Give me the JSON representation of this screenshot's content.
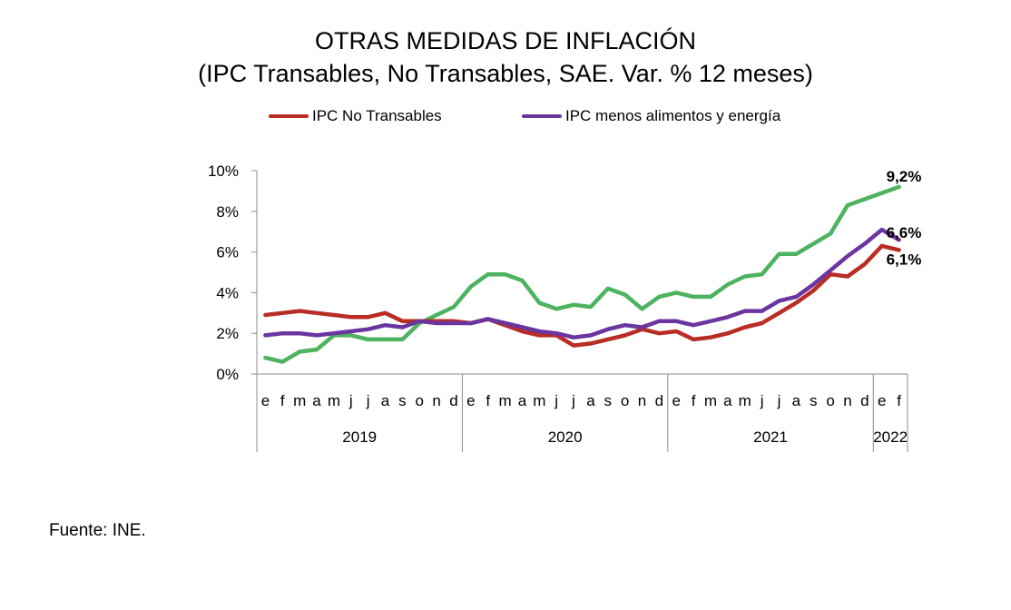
{
  "source": "Fuente: INE.",
  "chart_data": {
    "type": "line",
    "title": "OTRAS MEDIDAS DE INFLACIÓN",
    "subtitle": "(IPC Transables, No Transables, SAE.  Var. % 12 meses)",
    "xlabel": "",
    "ylabel": "",
    "ylim": [
      0,
      10
    ],
    "yticks": [
      "0%",
      "2%",
      "4%",
      "6%",
      "8%",
      "10%"
    ],
    "ytick_values": [
      0,
      2,
      4,
      6,
      8,
      10
    ],
    "grid": false,
    "legend_position": "top",
    "x_month_labels": [
      "e",
      "f",
      "m",
      "a",
      "m",
      "j",
      "j",
      "a",
      "s",
      "o",
      "n",
      "d",
      "e",
      "f",
      "m",
      "a",
      "m",
      "j",
      "j",
      "a",
      "s",
      "o",
      "n",
      "d",
      "e",
      "f",
      "m",
      "a",
      "m",
      "j",
      "j",
      "a",
      "s",
      "o",
      "n",
      "d",
      "e",
      "f"
    ],
    "x_year_groups": [
      {
        "label": "2019",
        "months": 12
      },
      {
        "label": "2020",
        "months": 12
      },
      {
        "label": "2021",
        "months": 12
      },
      {
        "label": "2022",
        "months": 2
      }
    ],
    "series": [
      {
        "name": "IPC Transables",
        "in_legend": false,
        "color": "#4db35e",
        "values": [
          0.8,
          0.6,
          1.1,
          1.2,
          1.9,
          1.9,
          1.7,
          1.7,
          1.7,
          2.5,
          2.9,
          3.3,
          4.3,
          4.9,
          4.9,
          4.6,
          3.5,
          3.2,
          3.4,
          3.3,
          4.2,
          3.9,
          3.2,
          3.8,
          4.0,
          3.8,
          3.8,
          4.4,
          4.8,
          4.9,
          5.9,
          5.9,
          6.4,
          6.9,
          8.3,
          8.6,
          8.9,
          9.2
        ],
        "end_label": "9,2%"
      },
      {
        "name": "IPC No Transables",
        "in_legend": true,
        "color": "#b82d24",
        "values": [
          2.9,
          3.0,
          3.1,
          3.0,
          2.9,
          2.8,
          2.8,
          3.0,
          2.6,
          2.6,
          2.6,
          2.6,
          2.5,
          2.7,
          2.4,
          2.1,
          1.9,
          1.9,
          1.4,
          1.5,
          1.7,
          1.9,
          2.2,
          2.0,
          2.1,
          1.7,
          1.8,
          2.0,
          2.3,
          2.5,
          3.0,
          3.5,
          4.1,
          4.9,
          4.8,
          5.4,
          6.3,
          6.1
        ],
        "end_label": "6,1%"
      },
      {
        "name": "IPC menos alimentos y energía",
        "in_legend": true,
        "color": "#6b35a0",
        "values": [
          1.9,
          2.0,
          2.0,
          1.9,
          2.0,
          2.1,
          2.2,
          2.4,
          2.3,
          2.6,
          2.5,
          2.5,
          2.5,
          2.7,
          2.5,
          2.3,
          2.1,
          2.0,
          1.8,
          1.9,
          2.2,
          2.4,
          2.3,
          2.6,
          2.6,
          2.4,
          2.6,
          2.8,
          3.1,
          3.1,
          3.6,
          3.8,
          4.4,
          5.1,
          5.8,
          6.4,
          7.1,
          6.6
        ],
        "end_label": "6,6%"
      }
    ]
  }
}
